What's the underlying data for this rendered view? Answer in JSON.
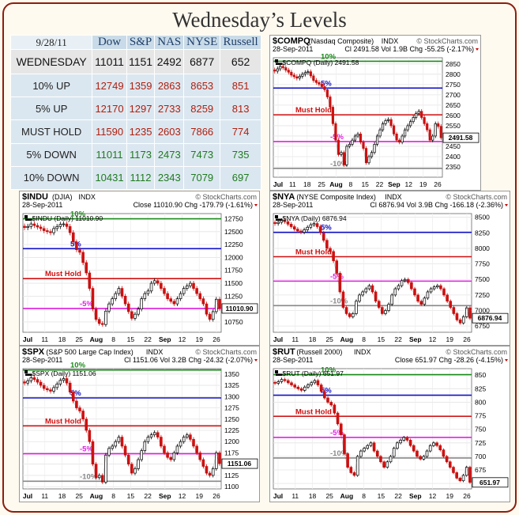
{
  "title": "Wednesday’s Levels",
  "table": {
    "date": "9/28/11",
    "columns": [
      "Dow",
      "S&P",
      "NAS",
      "NYSE",
      "Russell"
    ],
    "rows": [
      {
        "label": "WEDNESDAY",
        "kind": "cur",
        "values": [
          "11011",
          "1151",
          "2492",
          "6877",
          "652"
        ]
      },
      {
        "label": "10% UP",
        "kind": "up",
        "values": [
          "12749",
          "1359",
          "2863",
          "8653",
          "851"
        ]
      },
      {
        "label": "5% UP",
        "kind": "up",
        "values": [
          "12170",
          "1297",
          "2733",
          "8259",
          "813"
        ]
      },
      {
        "label": "MUST HOLD",
        "kind": "hold",
        "values": [
          "11590",
          "1235",
          "2603",
          "7866",
          "774"
        ]
      },
      {
        "label": "5% DOWN",
        "kind": "down",
        "values": [
          "11011",
          "1173",
          "2473",
          "7473",
          "735"
        ]
      },
      {
        "label": "10% DOWN",
        "kind": "down",
        "values": [
          "10431",
          "1112",
          "2343",
          "7079",
          "697"
        ]
      }
    ]
  },
  "chart_data": [
    {
      "id": "compq",
      "type": "candlestick",
      "symbol": "$COMPQ",
      "name": "(Nasdaq Composite)",
      "exchange": "INDX",
      "source": "© StockCharts.com",
      "date": "28-Sep-2011",
      "ohlc_line": "Cl 2491.58  Vol 1.9B  Chg -55.25 (-2.17%)",
      "legend": "▬$COMPQ (Daily) 2491.58",
      "last": "2491.58",
      "last_value": 2491.58,
      "ylim": [
        2300,
        2880
      ],
      "yticks": [
        2350,
        2400,
        2450,
        2500,
        2550,
        2600,
        2650,
        2700,
        2750,
        2800,
        2850
      ],
      "xticks": [
        "Jul",
        "11",
        "18",
        "25",
        "Aug",
        "8",
        "15",
        "22",
        "Sep",
        "12",
        "19",
        "26"
      ],
      "levels": [
        {
          "label": "10%",
          "value": 2863,
          "color": "#1a8a1a"
        },
        {
          "label": "5%",
          "value": 2733,
          "color": "#1010c8"
        },
        {
          "label": "Must Hold",
          "value": 2603,
          "color": "#d01010"
        },
        {
          "label": "-5%",
          "value": 2473,
          "color": "#e020e0"
        },
        {
          "label": "-10%",
          "value": 2343,
          "color": "#888888"
        }
      ],
      "closes": [
        2815,
        2826,
        2838,
        2832,
        2820,
        2810,
        2796,
        2788,
        2781,
        2790,
        2800,
        2808,
        2812,
        2792,
        2770,
        2760,
        2752,
        2740,
        2725,
        2690,
        2640,
        2560,
        2480,
        2410,
        2420,
        2360,
        2450,
        2460,
        2480,
        2500,
        2510,
        2470,
        2440,
        2370,
        2400,
        2420,
        2460,
        2500,
        2530,
        2560,
        2575,
        2580,
        2550,
        2510,
        2480,
        2470,
        2500,
        2530,
        2550,
        2570,
        2590,
        2610,
        2620,
        2590,
        2560,
        2530,
        2480,
        2500,
        2560,
        2547,
        2491.58
      ]
    },
    {
      "id": "indu",
      "type": "candlestick",
      "symbol": "$INDU",
      "name": "(DJIA)",
      "exchange": "INDX",
      "source": "© StockCharts.com",
      "date": "28-Sep-2011",
      "ohlc_line": "Close 11010.90  Chg -179.79 (-1.61%)",
      "legend": "▬$INDU (Daily) 11010.90",
      "last": "11010.90",
      "last_value": 11010.9,
      "ylim": [
        10550,
        12850
      ],
      "yticks": [
        10750,
        11000,
        11250,
        11500,
        11750,
        12000,
        12250,
        12500,
        12750
      ],
      "xticks": [
        "Jul",
        "11",
        "18",
        "25",
        "Aug",
        "8",
        "15",
        "22",
        "Sep",
        "12",
        "19",
        "26"
      ],
      "levels": [
        {
          "label": "10%",
          "value": 12749,
          "color": "#1a8a1a"
        },
        {
          "label": "5%",
          "value": 12170,
          "color": "#1010c8"
        },
        {
          "label": "Must Hold",
          "value": 11590,
          "color": "#d01010"
        },
        {
          "label": "-5%",
          "value": 11011,
          "color": "#e020e0"
        }
      ],
      "closes": [
        12580,
        12600,
        12650,
        12620,
        12590,
        12560,
        12520,
        12500,
        12480,
        12560,
        12600,
        12640,
        12650,
        12600,
        12480,
        12300,
        12150,
        12100,
        11900,
        11700,
        11400,
        11000,
        10800,
        10720,
        10700,
        10960,
        11100,
        11200,
        11300,
        11400,
        11250,
        11100,
        10950,
        10820,
        10900,
        11000,
        11200,
        11300,
        11350,
        11500,
        11550,
        11500,
        11400,
        11300,
        11200,
        11150,
        11100,
        11200,
        11300,
        11400,
        11450,
        11500,
        11400,
        11300,
        11200,
        11100,
        10900,
        10800,
        10950,
        11190,
        11010.9
      ]
    },
    {
      "id": "nya",
      "type": "candlestick",
      "symbol": "$NYA",
      "name": "(NYSE Composite Index)",
      "exchange": "INDX",
      "source": "© StockCharts.com",
      "date": "28-Sep-2011",
      "ohlc_line": "Cl 6876.94  Vol 3.9B  Chg -166.18 (-2.36%)",
      "legend": "▬$NYA (Daily) 6876.94",
      "last": "6876.94",
      "last_value": 6876.94,
      "ylim": [
        6650,
        8560
      ],
      "yticks": [
        6750,
        7000,
        7250,
        7500,
        7750,
        8000,
        8250,
        8500
      ],
      "xticks": [
        "Jul",
        "11",
        "18",
        "25",
        "Aug",
        "8",
        "15",
        "22",
        "Sep",
        "12",
        "19",
        "26"
      ],
      "levels": [
        {
          "label": "5%",
          "value": 8259,
          "color": "#1010c8"
        },
        {
          "label": "Must Hold",
          "value": 7866,
          "color": "#d01010"
        },
        {
          "label": "-5%",
          "value": 7473,
          "color": "#e020e0"
        },
        {
          "label": "-10%",
          "value": 7079,
          "color": "#888888"
        }
      ],
      "closes": [
        8400,
        8420,
        8450,
        8430,
        8390,
        8350,
        8310,
        8280,
        8260,
        8300,
        8340,
        8380,
        8400,
        8350,
        8250,
        8130,
        8000,
        7950,
        7800,
        7600,
        7300,
        7050,
        6950,
        6900,
        6950,
        7150,
        7250,
        7300,
        7350,
        7400,
        7300,
        7150,
        7050,
        6950,
        7000,
        7100,
        7250,
        7350,
        7400,
        7480,
        7500,
        7450,
        7350,
        7250,
        7150,
        7100,
        7200,
        7300,
        7350,
        7380,
        7400,
        7350,
        7250,
        7150,
        7050,
        6950,
        6850,
        6800,
        6900,
        7043,
        6876.94
      ]
    },
    {
      "id": "spx",
      "type": "candlestick",
      "symbol": "$SPX",
      "name": "(S&P 500 Large Cap Index)",
      "exchange": "INDX",
      "source": "© StockCharts.com",
      "date": "28-Sep-2011",
      "ohlc_line": "Cl 1151.06  Vol 3.2B  Chg -24.32 (-2.07%)",
      "legend": "▬$SPX (Daily) 1151.06",
      "last": "1151.06",
      "last_value": 1151.06,
      "ylim": [
        1095,
        1362
      ],
      "yticks": [
        1100,
        1125,
        1150,
        1175,
        1200,
        1225,
        1250,
        1275,
        1300,
        1325,
        1350
      ],
      "xticks": [
        "Jul",
        "11",
        "18",
        "25",
        "Aug",
        "8",
        "15",
        "22",
        "Sep",
        "12",
        "19",
        "26"
      ],
      "levels": [
        {
          "label": "10%",
          "value": 1359,
          "color": "#1a8a1a"
        },
        {
          "label": "5%",
          "value": 1297,
          "color": "#1010c8"
        },
        {
          "label": "Must Hold",
          "value": 1235,
          "color": "#d01010"
        },
        {
          "label": "-5%",
          "value": 1173,
          "color": "#e020e0"
        },
        {
          "label": "-10%",
          "value": 1112,
          "color": "#888888"
        }
      ],
      "closes": [
        1330,
        1335,
        1342,
        1338,
        1332,
        1325,
        1318,
        1315,
        1312,
        1320,
        1328,
        1336,
        1340,
        1330,
        1310,
        1290,
        1275,
        1268,
        1250,
        1225,
        1200,
        1150,
        1120,
        1125,
        1110,
        1170,
        1185,
        1190,
        1200,
        1210,
        1190,
        1170,
        1150,
        1130,
        1140,
        1160,
        1180,
        1200,
        1210,
        1215,
        1220,
        1210,
        1190,
        1175,
        1165,
        1160,
        1175,
        1190,
        1200,
        1210,
        1215,
        1205,
        1190,
        1175,
        1160,
        1145,
        1130,
        1125,
        1140,
        1175,
        1151.06
      ]
    },
    {
      "id": "rut",
      "type": "candlestick",
      "symbol": "$RUT",
      "name": "(Russell 2000)",
      "exchange": "INDX",
      "source": "© StockCharts.com",
      "date": "28-Sep-2011",
      "ohlc_line": "Close 651.97  Chg -28.26 (-4.15%)",
      "legend": "▬$RUT (Daily) 651.97",
      "last": "651.97",
      "last_value": 651.97,
      "ylim": [
        640,
        862
      ],
      "yticks": [
        650,
        675,
        700,
        725,
        750,
        775,
        800,
        825,
        850
      ],
      "xticks": [
        "Jul",
        "11",
        "18",
        "25",
        "Aug",
        "8",
        "15",
        "22",
        "Sep",
        "12",
        "19",
        "26"
      ],
      "levels": [
        {
          "label": "10%",
          "value": 851,
          "color": "#1a8a1a"
        },
        {
          "label": "5%",
          "value": 813,
          "color": "#1010c8"
        },
        {
          "label": "Must Hold",
          "value": 774,
          "color": "#d01010"
        },
        {
          "label": "-5%",
          "value": 735,
          "color": "#e020e0"
        },
        {
          "label": "-10%",
          "value": 697,
          "color": "#888888"
        }
      ],
      "closes": [
        835,
        838,
        842,
        840,
        836,
        832,
        828,
        825,
        822,
        828,
        832,
        836,
        840,
        832,
        820,
        808,
        800,
        795,
        780,
        760,
        740,
        705,
        680,
        670,
        665,
        700,
        710,
        715,
        720,
        725,
        710,
        700,
        690,
        680,
        690,
        700,
        715,
        725,
        730,
        735,
        730,
        720,
        710,
        700,
        695,
        700,
        710,
        720,
        725,
        720,
        712,
        700,
        690,
        680,
        670,
        660,
        655,
        665,
        680,
        651.97
      ]
    }
  ]
}
